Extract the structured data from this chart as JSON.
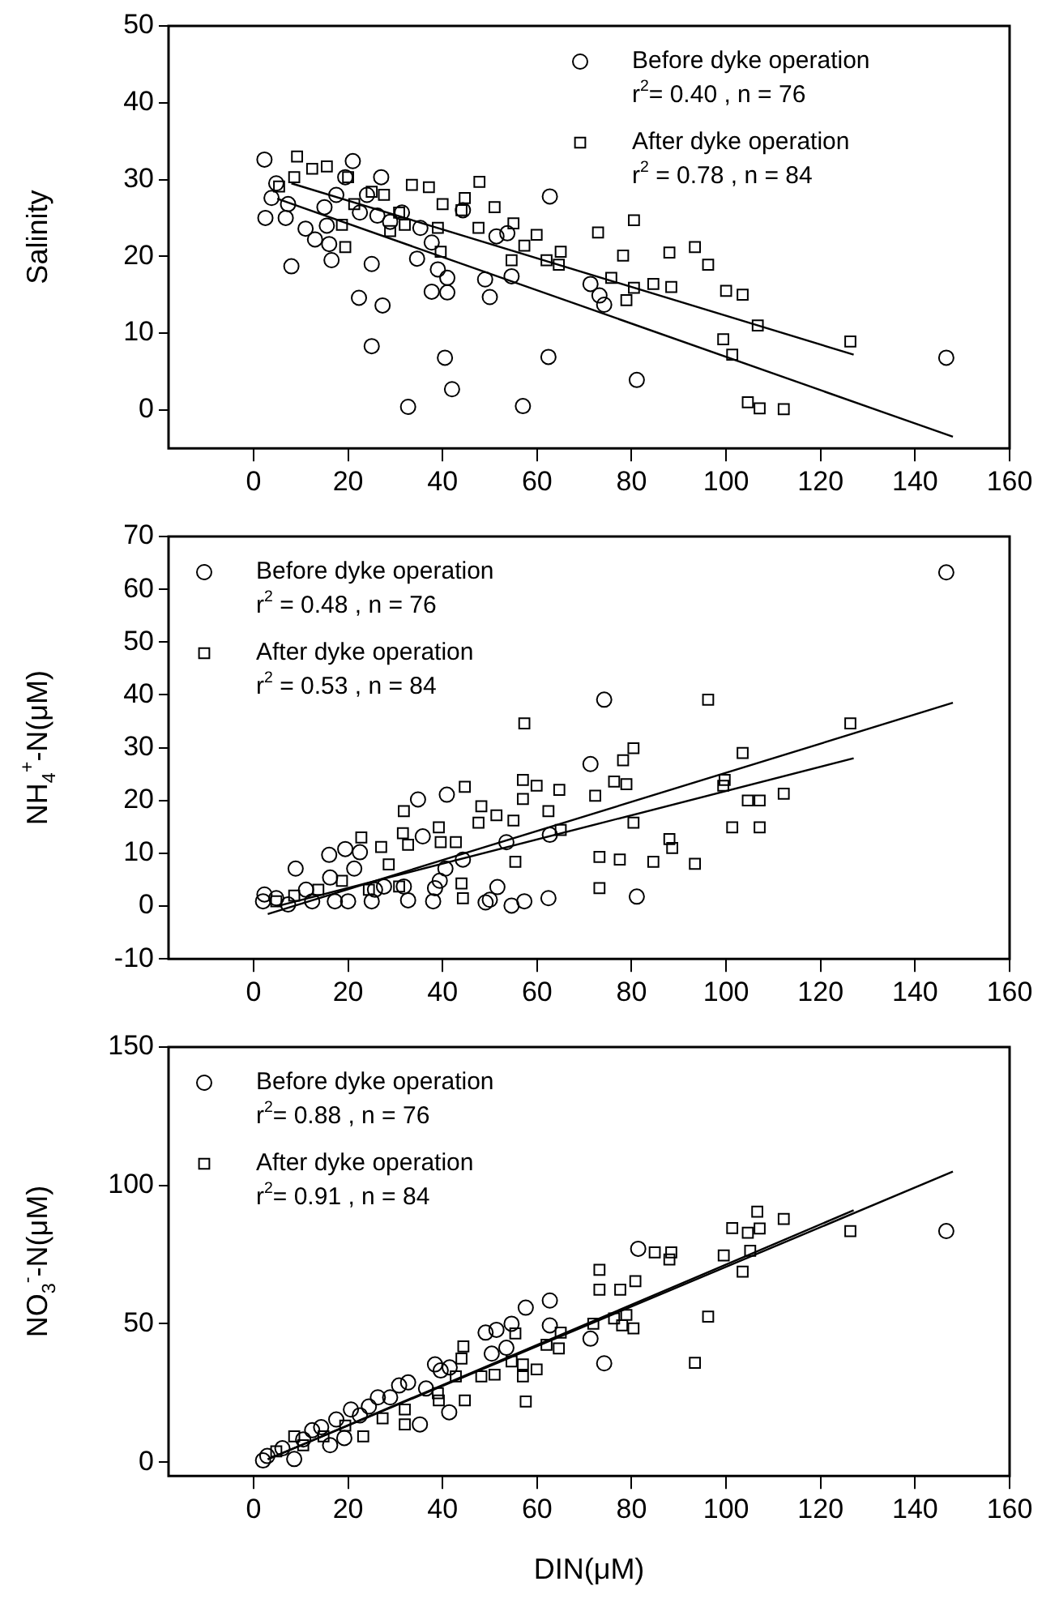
{
  "chart_data": [
    {
      "type": "scatter",
      "ylabel": "Salinity",
      "xlim": [
        -18,
        160
      ],
      "xticks": [
        0,
        20,
        40,
        60,
        80,
        100,
        120,
        140,
        160
      ],
      "ylim": [
        -5,
        50
      ],
      "yticks": [
        0,
        10,
        20,
        30,
        40,
        50
      ],
      "grid": false,
      "legend": "top right",
      "annotations": [
        "r$^{2}$= 0.40 , n = 76",
        "r$^{2}$ = 0.78 , n = 84"
      ],
      "series": [
        {
          "name": "Before dyke operation",
          "color": "#000000",
          "marker": "circle",
          "x": [
            2.3,
            2.5,
            3.8,
            6.8,
            8,
            7.3,
            11,
            13,
            16,
            16.5,
            15.5,
            22.3,
            25,
            25,
            27.3,
            27,
            21,
            26.2,
            32.7,
            34.6,
            35.3,
            37.7,
            39,
            41,
            41,
            40.5,
            42,
            49,
            50,
            51.4,
            53.7,
            54.6,
            57,
            62.4,
            62.7,
            71.3,
            73.2,
            74.2,
            81.1,
            146.6,
            24,
            17.5,
            15,
            4.8,
            19.4,
            22.5,
            28.9,
            31.4,
            37.7,
            44.3
          ],
          "values": [
            32.6,
            25,
            27.6,
            25,
            18.7,
            26.8,
            23.6,
            22.2,
            21.6,
            19.5,
            24,
            14.6,
            19,
            8.3,
            13.6,
            30.3,
            32.4,
            25.3,
            0.4,
            19.7,
            23.7,
            15.4,
            18.3,
            17.2,
            15.3,
            6.8,
            2.7,
            17,
            14.7,
            22.6,
            23,
            17.4,
            0.5,
            6.9,
            27.8,
            16.4,
            14.9,
            13.7,
            3.9,
            6.8,
            28,
            28,
            26.4,
            29.5,
            30.3,
            25.7,
            24.5,
            25.7,
            21.8,
            26
          ]
        },
        {
          "name": "After dyke operation",
          "color": "#000000",
          "marker": "square",
          "x": [
            9.2,
            5.4,
            8.6,
            12.4,
            15.5,
            20,
            19.4,
            18.7,
            21.3,
            25,
            27.6,
            28.9,
            30.8,
            32,
            33.5,
            37.1,
            39.6,
            39,
            40,
            44,
            44.7,
            47.8,
            47.6,
            51,
            55,
            54.6,
            57.3,
            59.9,
            62,
            65,
            64.6,
            72.9,
            75.7,
            78.2,
            78.9,
            80.5,
            80.5,
            84.6,
            88,
            88.4,
            93.4,
            96.2,
            100,
            103.5,
            99.4,
            101.3,
            106.7,
            104.6,
            107.1,
            112.2,
            126.3
          ],
          "values": [
            33,
            29.1,
            30.3,
            31.4,
            31.7,
            30.3,
            21.2,
            24.1,
            26.8,
            28.4,
            28,
            23.3,
            25.7,
            24.1,
            29.3,
            29,
            20.6,
            23.7,
            26.8,
            26,
            27.6,
            29.7,
            23.7,
            26.4,
            24.3,
            19.5,
            21.4,
            22.8,
            19.5,
            20.6,
            18.9,
            23.1,
            17.2,
            20.1,
            14.3,
            24.7,
            15.9,
            16.4,
            20.5,
            16,
            21.2,
            18.9,
            15.5,
            15,
            9.2,
            7.2,
            11,
            1,
            0.2,
            0.1,
            8.9
          ]
        },
        {
          "type": "line",
          "color": "#000000",
          "marker": "none",
          "line_style": "solid",
          "x": [
            5,
            148
          ],
          "values": [
            27.5,
            -3.5
          ]
        },
        {
          "type": "line",
          "color": "#000000",
          "marker": "none",
          "line_style": "solid",
          "x": [
            8,
            127
          ],
          "values": [
            29.5,
            7.2
          ]
        }
      ]
    },
    {
      "type": "scatter",
      "ylabel": "NH$_{4}$$^{+}$-N(μM)",
      "xlim": [
        -18,
        160
      ],
      "xticks": [
        0,
        20,
        40,
        60,
        80,
        100,
        120,
        140,
        160
      ],
      "ylim": [
        -10,
        70
      ],
      "yticks": [
        -10,
        0,
        10,
        20,
        30,
        40,
        50,
        60,
        70
      ],
      "grid": false,
      "legend": "top left",
      "annotations": [
        "r$^{2}$ = 0.48 , n = 76",
        "r$^{2}$ = 0.53 , n = 84"
      ],
      "series": [
        {
          "name": "Before dyke operation",
          "color": "#000000",
          "marker": "circle",
          "x": [
            146.6,
            74.2,
            71.3,
            40.9,
            34.8,
            53.5,
            62.7,
            44.3,
            19.4,
            22.5,
            16,
            8.9,
            2.3,
            2,
            7.3,
            12.4,
            17.2,
            20,
            25,
            32.7,
            38,
            49.1,
            51.6,
            50,
            54.6,
            57.3,
            62.4,
            81.1,
            40.6,
            39.4,
            38.4,
            31.8,
            21.3,
            16.2,
            11.1,
            4.8,
            25.7,
            35.8,
            27.6
          ],
          "values": [
            63.2,
            39.1,
            26.9,
            21.1,
            20.2,
            12.1,
            13.5,
            8.8,
            10.8,
            10.2,
            9.7,
            7.1,
            2.2,
            0.9,
            0.3,
            0.9,
            0.9,
            0.9,
            0.9,
            1.1,
            0.9,
            0.7,
            3.6,
            1.2,
            0.1,
            0.9,
            1.5,
            1.8,
            7.1,
            4.8,
            3.4,
            3.7,
            7.1,
            5.4,
            3.1,
            1.5,
            3.1,
            13.2,
            3.7
          ]
        },
        {
          "name": "After dyke operation",
          "color": "#000000",
          "marker": "square",
          "x": [
            96.2,
            126.3,
            57.3,
            80.4,
            78.2,
            76.3,
            78.9,
            72.3,
            103.5,
            99.7,
            99.4,
            104.6,
            107.1,
            112.2,
            101.3,
            107.1,
            88,
            88.6,
            93.4,
            84.6,
            77.5,
            73.2,
            73.2,
            80.4,
            57,
            57,
            59.9,
            64.7,
            62.4,
            65,
            55,
            55.4,
            48.2,
            47.6,
            51.4,
            44.7,
            31.8,
            31.6,
            32.7,
            39.2,
            39.6,
            42.8,
            44.3,
            44,
            22.8,
            27,
            28.6,
            30.8,
            18.7,
            13.7,
            8.6,
            4.8,
            24.4
          ],
          "values": [
            39.1,
            34.6,
            34.6,
            29.9,
            27.6,
            23.6,
            23.1,
            20.9,
            29,
            23.9,
            22.8,
            20,
            20,
            21.3,
            14.9,
            14.9,
            12.7,
            11,
            8,
            8.4,
            8.8,
            9.3,
            3.4,
            15.8,
            23.9,
            20.3,
            22.8,
            22,
            18,
            14.4,
            16.2,
            8.4,
            18.9,
            15.8,
            17.2,
            22.6,
            18,
            13.8,
            11.6,
            14.9,
            12.1,
            12.1,
            1.5,
            4.3,
            13,
            11.2,
            7.9,
            3.7,
            4.8,
            3.1,
            2,
            0.9,
            3.1
          ]
        },
        {
          "type": "line",
          "color": "#000000",
          "marker": "none",
          "line_style": "solid",
          "x": [
            3,
            148
          ],
          "values": [
            -1.5,
            38.5
          ]
        },
        {
          "type": "line",
          "color": "#000000",
          "marker": "none",
          "line_style": "solid",
          "x": [
            5,
            127
          ],
          "values": [
            0,
            28
          ]
        }
      ]
    },
    {
      "type": "scatter",
      "ylabel": "NO$_{3}$$^{-}$-N(μM)",
      "xlabel": "DIN(μM)",
      "xlim": [
        -18,
        160
      ],
      "xticks": [
        0,
        20,
        40,
        60,
        80,
        100,
        120,
        140,
        160
      ],
      "ylim": [
        -5,
        150
      ],
      "yticks": [
        0,
        50,
        100,
        150
      ],
      "grid": false,
      "legend": "top left",
      "annotations": [
        "r$^{2}$= 0.88 , n = 76",
        "r$^{2}$= 0.91 , n = 84"
      ],
      "series": [
        {
          "name": "Before dyke operation",
          "color": "#000000",
          "marker": "circle",
          "x": [
            146.6,
            81.4,
            62.7,
            57.6,
            54.6,
            51.4,
            49.1,
            62.7,
            53.5,
            50.4,
            71.3,
            74.2,
            38.4,
            39.6,
            41.5,
            32.7,
            30.8,
            41.4,
            35.2,
            26.3,
            20.6,
            19.2,
            16.2,
            12.4,
            8.6,
            2,
            2.9,
            6.1,
            10.5,
            14.3,
            17.5,
            22.5,
            28.9,
            24.4,
            36.5
          ],
          "values": [
            83.5,
            77.1,
            58.4,
            55.8,
            50,
            47.8,
            46.8,
            49.4,
            41.3,
            39.2,
            44.6,
            35.7,
            35.3,
            33.1,
            34.2,
            28.8,
            27.7,
            18,
            13.6,
            23.4,
            19,
            8.7,
            6.1,
            11.5,
            1.1,
            0.6,
            2.2,
            5,
            8.2,
            12.6,
            15.4,
            16.9,
            23.4,
            20.1,
            26.6
          ]
        },
        {
          "name": "After dyke operation",
          "color": "#000000",
          "marker": "square",
          "x": [
            106.6,
            112.2,
            101.3,
            107.1,
            104.6,
            126.3,
            99.5,
            105.1,
            103.5,
            84.9,
            88.4,
            88,
            73.2,
            73.2,
            77.6,
            80.8,
            96.2,
            93.4,
            71.9,
            76.3,
            78.9,
            78,
            80.4,
            65,
            64.6,
            62,
            59.9,
            57,
            57,
            57.6,
            55.4,
            54.6,
            51,
            48.2,
            44.7,
            44.4,
            44,
            42.8,
            39,
            39.2,
            32,
            32,
            27.3,
            23.2,
            19.4,
            14.8,
            10.5,
            8.6,
            4.8
          ],
          "values": [
            90.5,
            87.9,
            84.6,
            84.4,
            82.9,
            83.5,
            74.7,
            76.4,
            68.8,
            75.8,
            75.8,
            73.2,
            69.5,
            62.3,
            62.3,
            65.4,
            52.6,
            35.9,
            50,
            51.9,
            53.2,
            49.4,
            48.3,
            46.8,
            41.1,
            42.4,
            33.5,
            35.3,
            31,
            21.9,
            46.5,
            36.4,
            31.6,
            31,
            22.3,
            41.8,
            37.4,
            31,
            24.9,
            22.3,
            19,
            13.6,
            15.8,
            9.3,
            13.2,
            9.3,
            6.1,
            9.3,
            3.9
          ]
        },
        {
          "type": "line",
          "color": "#000000",
          "marker": "none",
          "line_style": "solid",
          "x": [
            3,
            148
          ],
          "values": [
            1,
            105
          ]
        },
        {
          "type": "line",
          "color": "#000000",
          "marker": "none",
          "line_style": "solid",
          "x": [
            3,
            127
          ],
          "values": [
            1,
            91
          ]
        }
      ]
    }
  ]
}
